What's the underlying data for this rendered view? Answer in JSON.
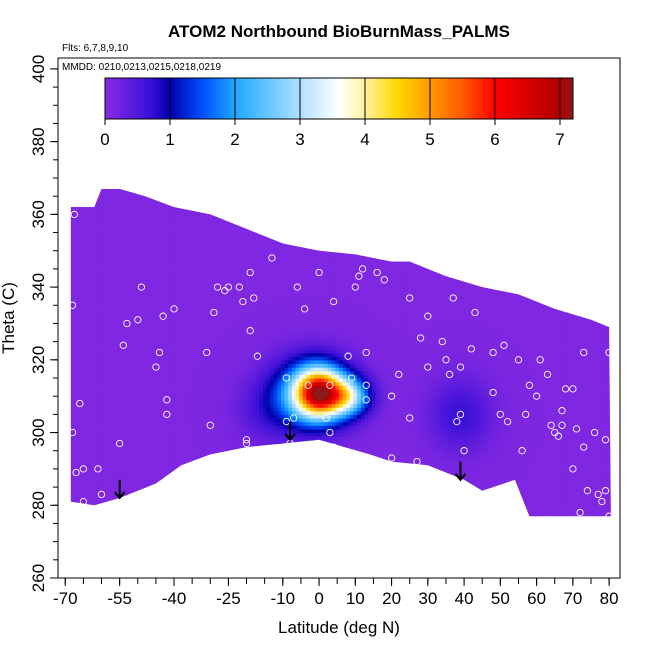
{
  "chart_data": {
    "type": "heatmap",
    "title": "ATOM2 Northbound BioBurnMass_PALMS",
    "annotations": [
      "Flts: 6,7,8,9,10",
      "MMDD: 0210,0213,0215,0218,0219"
    ],
    "xlabel": "Latitude (deg N)",
    "ylabel": "Theta (C)",
    "xlim": [
      -72,
      83
    ],
    "ylim": [
      260,
      403
    ],
    "x_ticks": [
      -70,
      -55,
      -40,
      -25,
      -10,
      0,
      10,
      20,
      30,
      40,
      50,
      60,
      70,
      80
    ],
    "y_ticks": [
      260,
      280,
      300,
      320,
      340,
      360,
      380,
      400
    ],
    "colorbar": {
      "range": [
        0,
        7.2
      ],
      "ticks": [
        0,
        1,
        2,
        3,
        4,
        5,
        6,
        7
      ],
      "stops": [
        {
          "v": 0.0,
          "c": "#8a2be2"
        },
        {
          "v": 0.7,
          "c": "#3a10d8"
        },
        {
          "v": 1.0,
          "c": "#0000aa"
        },
        {
          "v": 1.5,
          "c": "#0050ff"
        },
        {
          "v": 2.0,
          "c": "#1ea8ff"
        },
        {
          "v": 3.0,
          "c": "#b0e0ff"
        },
        {
          "v": 3.6,
          "c": "#ffffff"
        },
        {
          "v": 4.0,
          "c": "#fff2a0"
        },
        {
          "v": 4.5,
          "c": "#ffd700"
        },
        {
          "v": 5.0,
          "c": "#ff9a00"
        },
        {
          "v": 5.5,
          "c": "#ff5a00"
        },
        {
          "v": 6.0,
          "c": "#ff0000"
        },
        {
          "v": 7.0,
          "c": "#b00000"
        },
        {
          "v": 7.2,
          "c": "#8b1a1a"
        }
      ]
    },
    "base_value": 0.1,
    "domain_polygon": [
      [
        -68.5,
        281
      ],
      [
        -68.5,
        362
      ],
      [
        -62,
        362
      ],
      [
        -60,
        367
      ],
      [
        -55,
        367
      ],
      [
        -48,
        365
      ],
      [
        -40,
        362
      ],
      [
        -30,
        360
      ],
      [
        -20,
        356
      ],
      [
        -10,
        352
      ],
      [
        0,
        350
      ],
      [
        10,
        349
      ],
      [
        20,
        347
      ],
      [
        25,
        347
      ],
      [
        35,
        343
      ],
      [
        45,
        340
      ],
      [
        55,
        338
      ],
      [
        65,
        334
      ],
      [
        75,
        331
      ],
      [
        80,
        329
      ],
      [
        80.5,
        277
      ],
      [
        75,
        277
      ],
      [
        58,
        277
      ],
      [
        54,
        287
      ],
      [
        45,
        284
      ],
      [
        40,
        287
      ],
      [
        30,
        291
      ],
      [
        20,
        292
      ],
      [
        14,
        294
      ],
      [
        0,
        298
      ],
      [
        -10,
        297
      ],
      [
        -20,
        296
      ],
      [
        -30,
        294
      ],
      [
        -38,
        291
      ],
      [
        -45,
        286
      ],
      [
        -55,
        282
      ],
      [
        -62,
        280
      ]
    ],
    "blobs": [
      {
        "x": -2,
        "y": 311,
        "sx": 7.5,
        "sy": 6.5,
        "amp": 2.2
      },
      {
        "x": 0,
        "y": 311,
        "sx": 4.5,
        "sy": 4.5,
        "amp": 5.0
      },
      {
        "x": 8,
        "y": 310,
        "sx": 4,
        "sy": 3.5,
        "amp": 2.4
      },
      {
        "x": -14,
        "y": 306,
        "sx": 6,
        "sy": 6,
        "amp": 0.4
      },
      {
        "x": 39,
        "y": 305,
        "sx": 6,
        "sy": 7,
        "amp": 0.6
      }
    ],
    "sample_points": [
      [
        -67.5,
        360
      ],
      [
        -68,
        335
      ],
      [
        -68,
        300
      ],
      [
        -66,
        308
      ],
      [
        -67,
        289
      ],
      [
        -65,
        290
      ],
      [
        -61,
        290
      ],
      [
        -60,
        283
      ],
      [
        -65,
        281
      ],
      [
        -55,
        297
      ],
      [
        -54,
        324
      ],
      [
        -53,
        330
      ],
      [
        -50,
        331
      ],
      [
        -49,
        340
      ],
      [
        -45,
        318
      ],
      [
        -44,
        322
      ],
      [
        -43,
        332
      ],
      [
        -42,
        309
      ],
      [
        -42,
        305
      ],
      [
        -40,
        334
      ],
      [
        -43,
        285
      ],
      [
        -30,
        302
      ],
      [
        -31,
        322
      ],
      [
        -29,
        333
      ],
      [
        -28,
        340
      ],
      [
        -26,
        339
      ],
      [
        -25,
        340
      ],
      [
        -22,
        340
      ],
      [
        -21,
        336
      ],
      [
        -19,
        328
      ],
      [
        -18,
        337
      ],
      [
        -20,
        297
      ],
      [
        -20,
        298
      ],
      [
        -19,
        344
      ],
      [
        -17,
        321
      ],
      [
        -13,
        348
      ],
      [
        -9,
        315
      ],
      [
        -9,
        303
      ],
      [
        -8,
        297
      ],
      [
        -7,
        290
      ],
      [
        -7,
        304
      ],
      [
        -6,
        340
      ],
      [
        -4,
        334
      ],
      [
        -3,
        313
      ],
      [
        0,
        344
      ],
      [
        3,
        313
      ],
      [
        2,
        304
      ],
      [
        3,
        300
      ],
      [
        4,
        336
      ],
      [
        4,
        296
      ],
      [
        6,
        294
      ],
      [
        8,
        321
      ],
      [
        9,
        315
      ],
      [
        10,
        340
      ],
      [
        11,
        343
      ],
      [
        12,
        345
      ],
      [
        13,
        313
      ],
      [
        13,
        309
      ],
      [
        13,
        322
      ],
      [
        16,
        344
      ],
      [
        18,
        342
      ],
      [
        20,
        310
      ],
      [
        20,
        293
      ],
      [
        22,
        316
      ],
      [
        23,
        348
      ],
      [
        25,
        337
      ],
      [
        25,
        304
      ],
      [
        27,
        292
      ],
      [
        28,
        326
      ],
      [
        30,
        332
      ],
      [
        30,
        318
      ],
      [
        34,
        325
      ],
      [
        35,
        320
      ],
      [
        36,
        316
      ],
      [
        37,
        337
      ],
      [
        38,
        303
      ],
      [
        39,
        305
      ],
      [
        39,
        318
      ],
      [
        40,
        344
      ],
      [
        40,
        295
      ],
      [
        42,
        323
      ],
      [
        43,
        333
      ],
      [
        48,
        311
      ],
      [
        48,
        322
      ],
      [
        50,
        305
      ],
      [
        51,
        324
      ],
      [
        52,
        303
      ],
      [
        55,
        343
      ],
      [
        55,
        320
      ],
      [
        56,
        295
      ],
      [
        57,
        305
      ],
      [
        58,
        313
      ],
      [
        60,
        310
      ],
      [
        61,
        320
      ],
      [
        63,
        316
      ],
      [
        64,
        302
      ],
      [
        65,
        300
      ],
      [
        66,
        299
      ],
      [
        67,
        302
      ],
      [
        67,
        306
      ],
      [
        68,
        312
      ],
      [
        70,
        290
      ],
      [
        70,
        312
      ],
      [
        71,
        301
      ],
      [
        73,
        322
      ],
      [
        73,
        296
      ],
      [
        72,
        278
      ],
      [
        74,
        284
      ],
      [
        76,
        300
      ],
      [
        77,
        283
      ],
      [
        78,
        281
      ],
      [
        79,
        284
      ],
      [
        79,
        298
      ],
      [
        80,
        322
      ],
      [
        80,
        277
      ]
    ],
    "arrows": [
      {
        "x": -55,
        "y_top": 287,
        "y_bottom": 282
      },
      {
        "x": -8,
        "y_top": 303,
        "y_bottom": 298
      },
      {
        "x": 39,
        "y_top": 292,
        "y_bottom": 287
      }
    ]
  }
}
